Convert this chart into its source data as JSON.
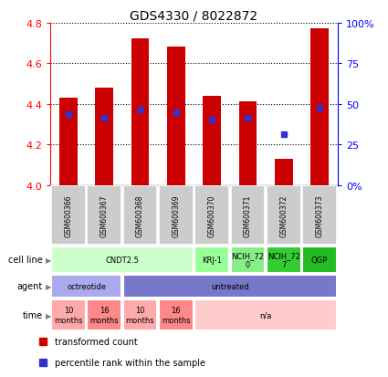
{
  "title": "GDS4330 / 8022872",
  "samples": [
    "GSM600366",
    "GSM600367",
    "GSM600368",
    "GSM600369",
    "GSM600370",
    "GSM600371",
    "GSM600372",
    "GSM600373"
  ],
  "bar_values": [
    4.43,
    4.48,
    4.72,
    4.68,
    4.44,
    4.41,
    4.13,
    4.77
  ],
  "percentile_values": [
    4.35,
    4.33,
    4.37,
    4.36,
    4.32,
    4.33,
    4.25,
    4.38
  ],
  "ylim_left": [
    4.0,
    4.8
  ],
  "left_ticks": [
    4.0,
    4.2,
    4.4,
    4.6,
    4.8
  ],
  "right_ticks": [
    0,
    25,
    50,
    75,
    100
  ],
  "bar_color": "#cc0000",
  "percentile_color": "#3333cc",
  "cell_line_groups": [
    {
      "text": "CNDT2.5",
      "start": 0,
      "end": 3,
      "color": "#ccffcc"
    },
    {
      "text": "KRJ-1",
      "start": 4,
      "end": 4,
      "color": "#99ff99"
    },
    {
      "text": "NCIH_72\n0",
      "start": 5,
      "end": 5,
      "color": "#88ee88"
    },
    {
      "text": "NCIH_72\n7",
      "start": 6,
      "end": 6,
      "color": "#33cc33"
    },
    {
      "text": "QGP",
      "start": 7,
      "end": 7,
      "color": "#22bb22"
    }
  ],
  "agent_groups": [
    {
      "text": "octreotide",
      "start": 0,
      "end": 1,
      "color": "#aaaaee"
    },
    {
      "text": "untreated",
      "start": 2,
      "end": 7,
      "color": "#7777cc"
    }
  ],
  "time_groups": [
    {
      "text": "10\nmonths",
      "start": 0,
      "end": 0,
      "color": "#ffaaaa"
    },
    {
      "text": "16\nmonths",
      "start": 1,
      "end": 1,
      "color": "#ff8888"
    },
    {
      "text": "10\nmonths",
      "start": 2,
      "end": 2,
      "color": "#ffaaaa"
    },
    {
      "text": "16\nmonths",
      "start": 3,
      "end": 3,
      "color": "#ff8888"
    },
    {
      "text": "n/a",
      "start": 4,
      "end": 7,
      "color": "#ffcccc"
    }
  ],
  "row_labels": [
    "cell line",
    "agent",
    "time"
  ],
  "legend_items": [
    {
      "label": "transformed count",
      "color": "#cc0000"
    },
    {
      "label": "percentile rank within the sample",
      "color": "#3333cc"
    }
  ],
  "sample_box_color": "#cccccc",
  "fig_width": 4.25,
  "fig_height": 4.14,
  "dpi": 100
}
